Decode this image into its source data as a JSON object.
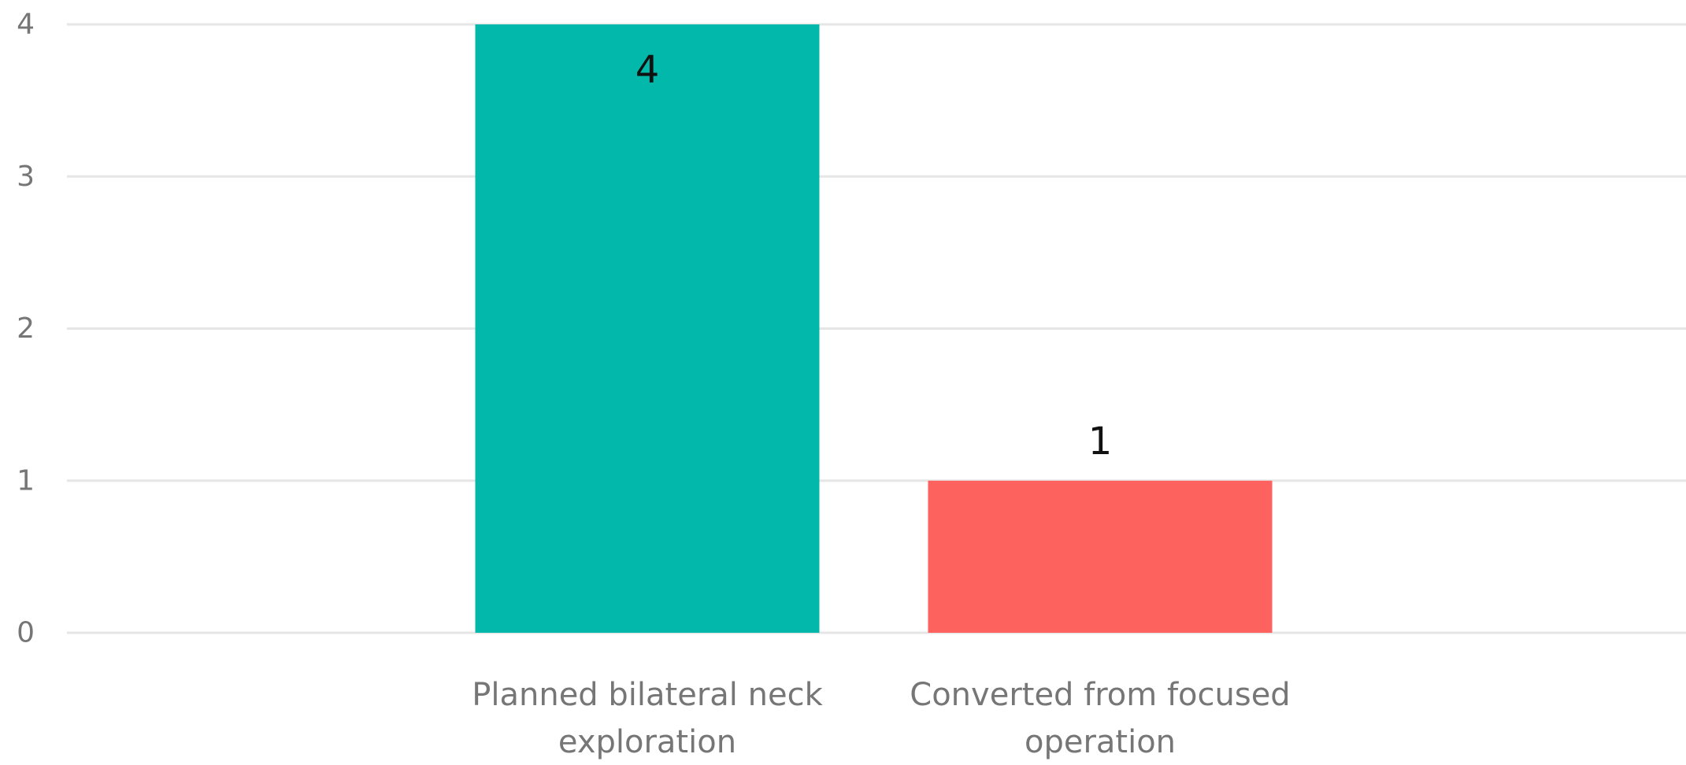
{
  "chart_data": {
    "type": "bar",
    "title": "",
    "xlabel": "",
    "ylabel": "",
    "categories": [
      "Planned bilateral neck exploration",
      "Converted from focused operation"
    ],
    "category_lines": [
      [
        "Planned bilateral neck",
        "exploration"
      ],
      [
        "Converted from focused",
        "operation"
      ]
    ],
    "values": [
      4,
      1
    ],
    "data_labels": [
      "4",
      "1"
    ],
    "colors": [
      "#01b8aa",
      "#fd625e"
    ],
    "ylim": [
      0,
      4
    ],
    "yticks": [
      0,
      1,
      2,
      3,
      4
    ],
    "ytick_labels": [
      "0",
      "1",
      "2",
      "3",
      "4"
    ],
    "grid": true,
    "legend": "none"
  }
}
